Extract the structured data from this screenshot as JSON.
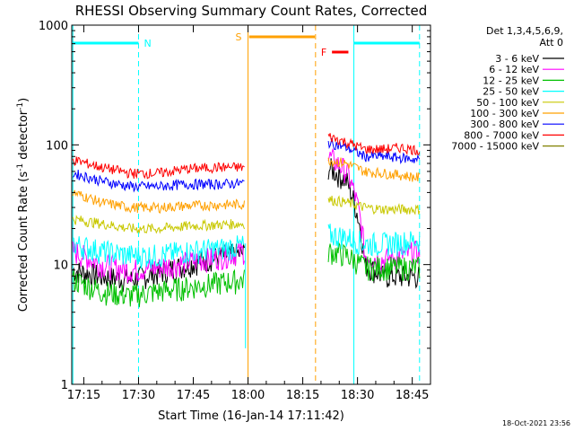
{
  "chart_data": {
    "type": "line",
    "title": "RHESSI Observing Summary Count Rates, Corrected",
    "xlabel": "Start Time (16-Jan-14 17:11:42)",
    "ylabel_main": "Corrected Count Rate (s",
    "ylabel_sup1": "-1",
    "ylabel_mid": " detector",
    "ylabel_sup2": "-1",
    "ylabel_end": ")",
    "y_scale": "log",
    "ylim": [
      1,
      1000
    ],
    "xlim": [
      "17:11:42",
      "18:50:00"
    ],
    "x_ticks": [
      "17:15",
      "17:30",
      "17:45",
      "18:00",
      "18:15",
      "18:30",
      "18:45"
    ],
    "y_ticks": [
      "1",
      "10",
      "100",
      "1000"
    ],
    "footer_timestamp": "18-Oct-2021 23:56",
    "legend_header_1": "Det 1,3,4,5,6,9,",
    "legend_header_2": "Att 0",
    "legend_placement": "right",
    "series": [
      {
        "name": "3 - 6 keV",
        "color": "#000000",
        "seg1": [
          9.0,
          8.0,
          7.5,
          8.5,
          10,
          11.5,
          12.5
        ],
        "seg2": [
          65,
          50,
          10,
          8,
          8,
          8
        ]
      },
      {
        "name": "6 - 12 keV",
        "color": "#ff00ff",
        "seg1": [
          13,
          10,
          9,
          9.5,
          10.5,
          11.5,
          13
        ],
        "seg2": [
          80,
          60,
          12,
          11,
          12,
          13
        ]
      },
      {
        "name": "12 - 25 keV",
        "color": "#00c000",
        "seg1": [
          7.5,
          6.0,
          5.5,
          6.0,
          6.5,
          7.0,
          7.5
        ],
        "seg2": [
          13,
          12,
          9.5,
          9.5,
          9.5,
          9.5
        ]
      },
      {
        "name": "25 - 50 keV",
        "color": "#00ffff",
        "seg1": [
          15,
          13,
          12,
          12,
          13,
          13.5,
          14.5
        ],
        "seg2": [
          18,
          17,
          15,
          15,
          15.5,
          16
        ]
      },
      {
        "name": "50 - 100 keV",
        "color": "#c8c800",
        "seg1": [
          24,
          22,
          20,
          20,
          21,
          21.5,
          22
        ],
        "seg2": [
          35,
          33,
          30,
          29,
          29,
          29
        ]
      },
      {
        "name": "100 - 300 keV",
        "color": "#ffa000",
        "seg1": [
          40,
          33,
          30,
          30,
          31,
          31.5,
          32
        ],
        "seg2": [
          75,
          70,
          60,
          58,
          56,
          53
        ]
      },
      {
        "name": "300 - 800 keV",
        "color": "#0000ff",
        "seg1": [
          58,
          50,
          45,
          45,
          47,
          47,
          48
        ],
        "seg2": [
          105,
          95,
          80,
          80,
          78,
          75
        ]
      },
      {
        "name": "800 - 7000 keV",
        "color": "#ff0000",
        "seg1": [
          75,
          65,
          58,
          58,
          63,
          65,
          65
        ],
        "seg2": [
          118,
          105,
          92,
          92,
          95,
          90
        ]
      },
      {
        "name": "7000 - 15000 keV",
        "color": "#808000",
        "seg1": [],
        "seg2": []
      }
    ],
    "annotations": [
      {
        "label": "N",
        "color": "#00ffff",
        "type": "night"
      },
      {
        "label": "S",
        "color": "#ffa000",
        "type": "SAA"
      },
      {
        "label": "F",
        "color": "#ff0000",
        "type": "flare"
      }
    ]
  }
}
